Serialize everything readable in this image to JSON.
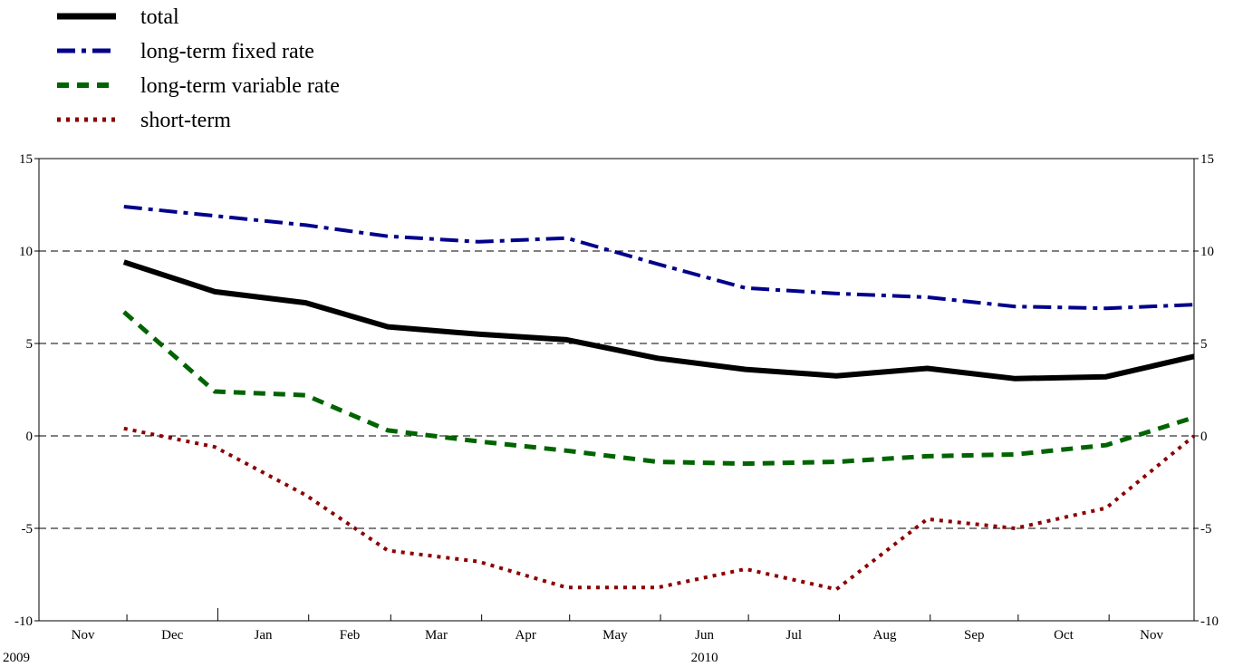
{
  "chart_data": {
    "type": "line",
    "categories": [
      "Nov",
      "Dec",
      "Jan",
      "Feb",
      "Mar",
      "Apr",
      "May",
      "Jun",
      "Jul",
      "Aug",
      "Sep",
      "Oct",
      "Nov"
    ],
    "year_labels": [
      {
        "label": "2009",
        "category_index": 0
      },
      {
        "label": "2010",
        "category_index": 7
      }
    ],
    "ylim": [
      -10,
      15
    ],
    "yticks": [
      15,
      10,
      5,
      0,
      -5,
      -10
    ],
    "y_tick_labels": [
      "15",
      "10",
      "5",
      "0",
      "-5",
      "-10"
    ],
    "grid": "horizontal dashed",
    "legend_position": "top-left",
    "series": [
      {
        "name": "total",
        "color": "#000000",
        "style": "solid",
        "x": [
          "2009-11-30",
          "2009-12-31",
          "2010-01-31",
          "2010-02-28",
          "2010-03-31",
          "2010-04-30",
          "2010-05-31",
          "2010-06-30",
          "2010-07-31",
          "2010-08-31",
          "2010-09-30",
          "2010-10-31",
          "2010-11-30"
        ],
        "values": [
          9.4,
          7.8,
          7.2,
          5.9,
          5.5,
          5.2,
          4.2,
          3.6,
          3.25,
          3.65,
          3.1,
          3.2,
          4.3
        ]
      },
      {
        "name": "long-term fixed rate",
        "color": "#00008b",
        "style": "dash-dot",
        "x": [
          "2009-11-30",
          "2009-12-31",
          "2010-01-31",
          "2010-02-28",
          "2010-03-31",
          "2010-04-30",
          "2010-05-31",
          "2010-06-30",
          "2010-07-31",
          "2010-08-31",
          "2010-09-30",
          "2010-10-31",
          "2010-11-30"
        ],
        "values": [
          12.4,
          11.9,
          11.4,
          10.8,
          10.5,
          10.7,
          9.3,
          8.0,
          7.7,
          7.5,
          7.0,
          6.9,
          7.1
        ]
      },
      {
        "name": "long-term variable rate",
        "color": "#006400",
        "style": "dashed",
        "x": [
          "2009-11-30",
          "2009-12-31",
          "2010-01-31",
          "2010-02-28",
          "2010-03-31",
          "2010-04-30",
          "2010-05-31",
          "2010-06-30",
          "2010-07-31",
          "2010-08-31",
          "2010-09-30",
          "2010-10-31",
          "2010-11-30"
        ],
        "values": [
          6.7,
          2.4,
          2.2,
          0.3,
          -0.3,
          -0.8,
          -1.4,
          -1.5,
          -1.4,
          -1.1,
          -1.0,
          -0.5,
          1.0
        ]
      },
      {
        "name": "short-term",
        "color": "#8b0000",
        "style": "dotted",
        "x": [
          "2009-11-30",
          "2009-12-31",
          "2010-01-31",
          "2010-02-28",
          "2010-03-31",
          "2010-04-30",
          "2010-05-31",
          "2010-06-30",
          "2010-07-31",
          "2010-08-31",
          "2010-09-30",
          "2010-10-31",
          "2010-11-30"
        ],
        "values": [
          0.4,
          -0.6,
          -3.2,
          -6.2,
          -6.8,
          -8.2,
          -8.2,
          -7.2,
          -8.3,
          -4.5,
          -5.0,
          -3.9,
          0.0
        ]
      }
    ]
  }
}
